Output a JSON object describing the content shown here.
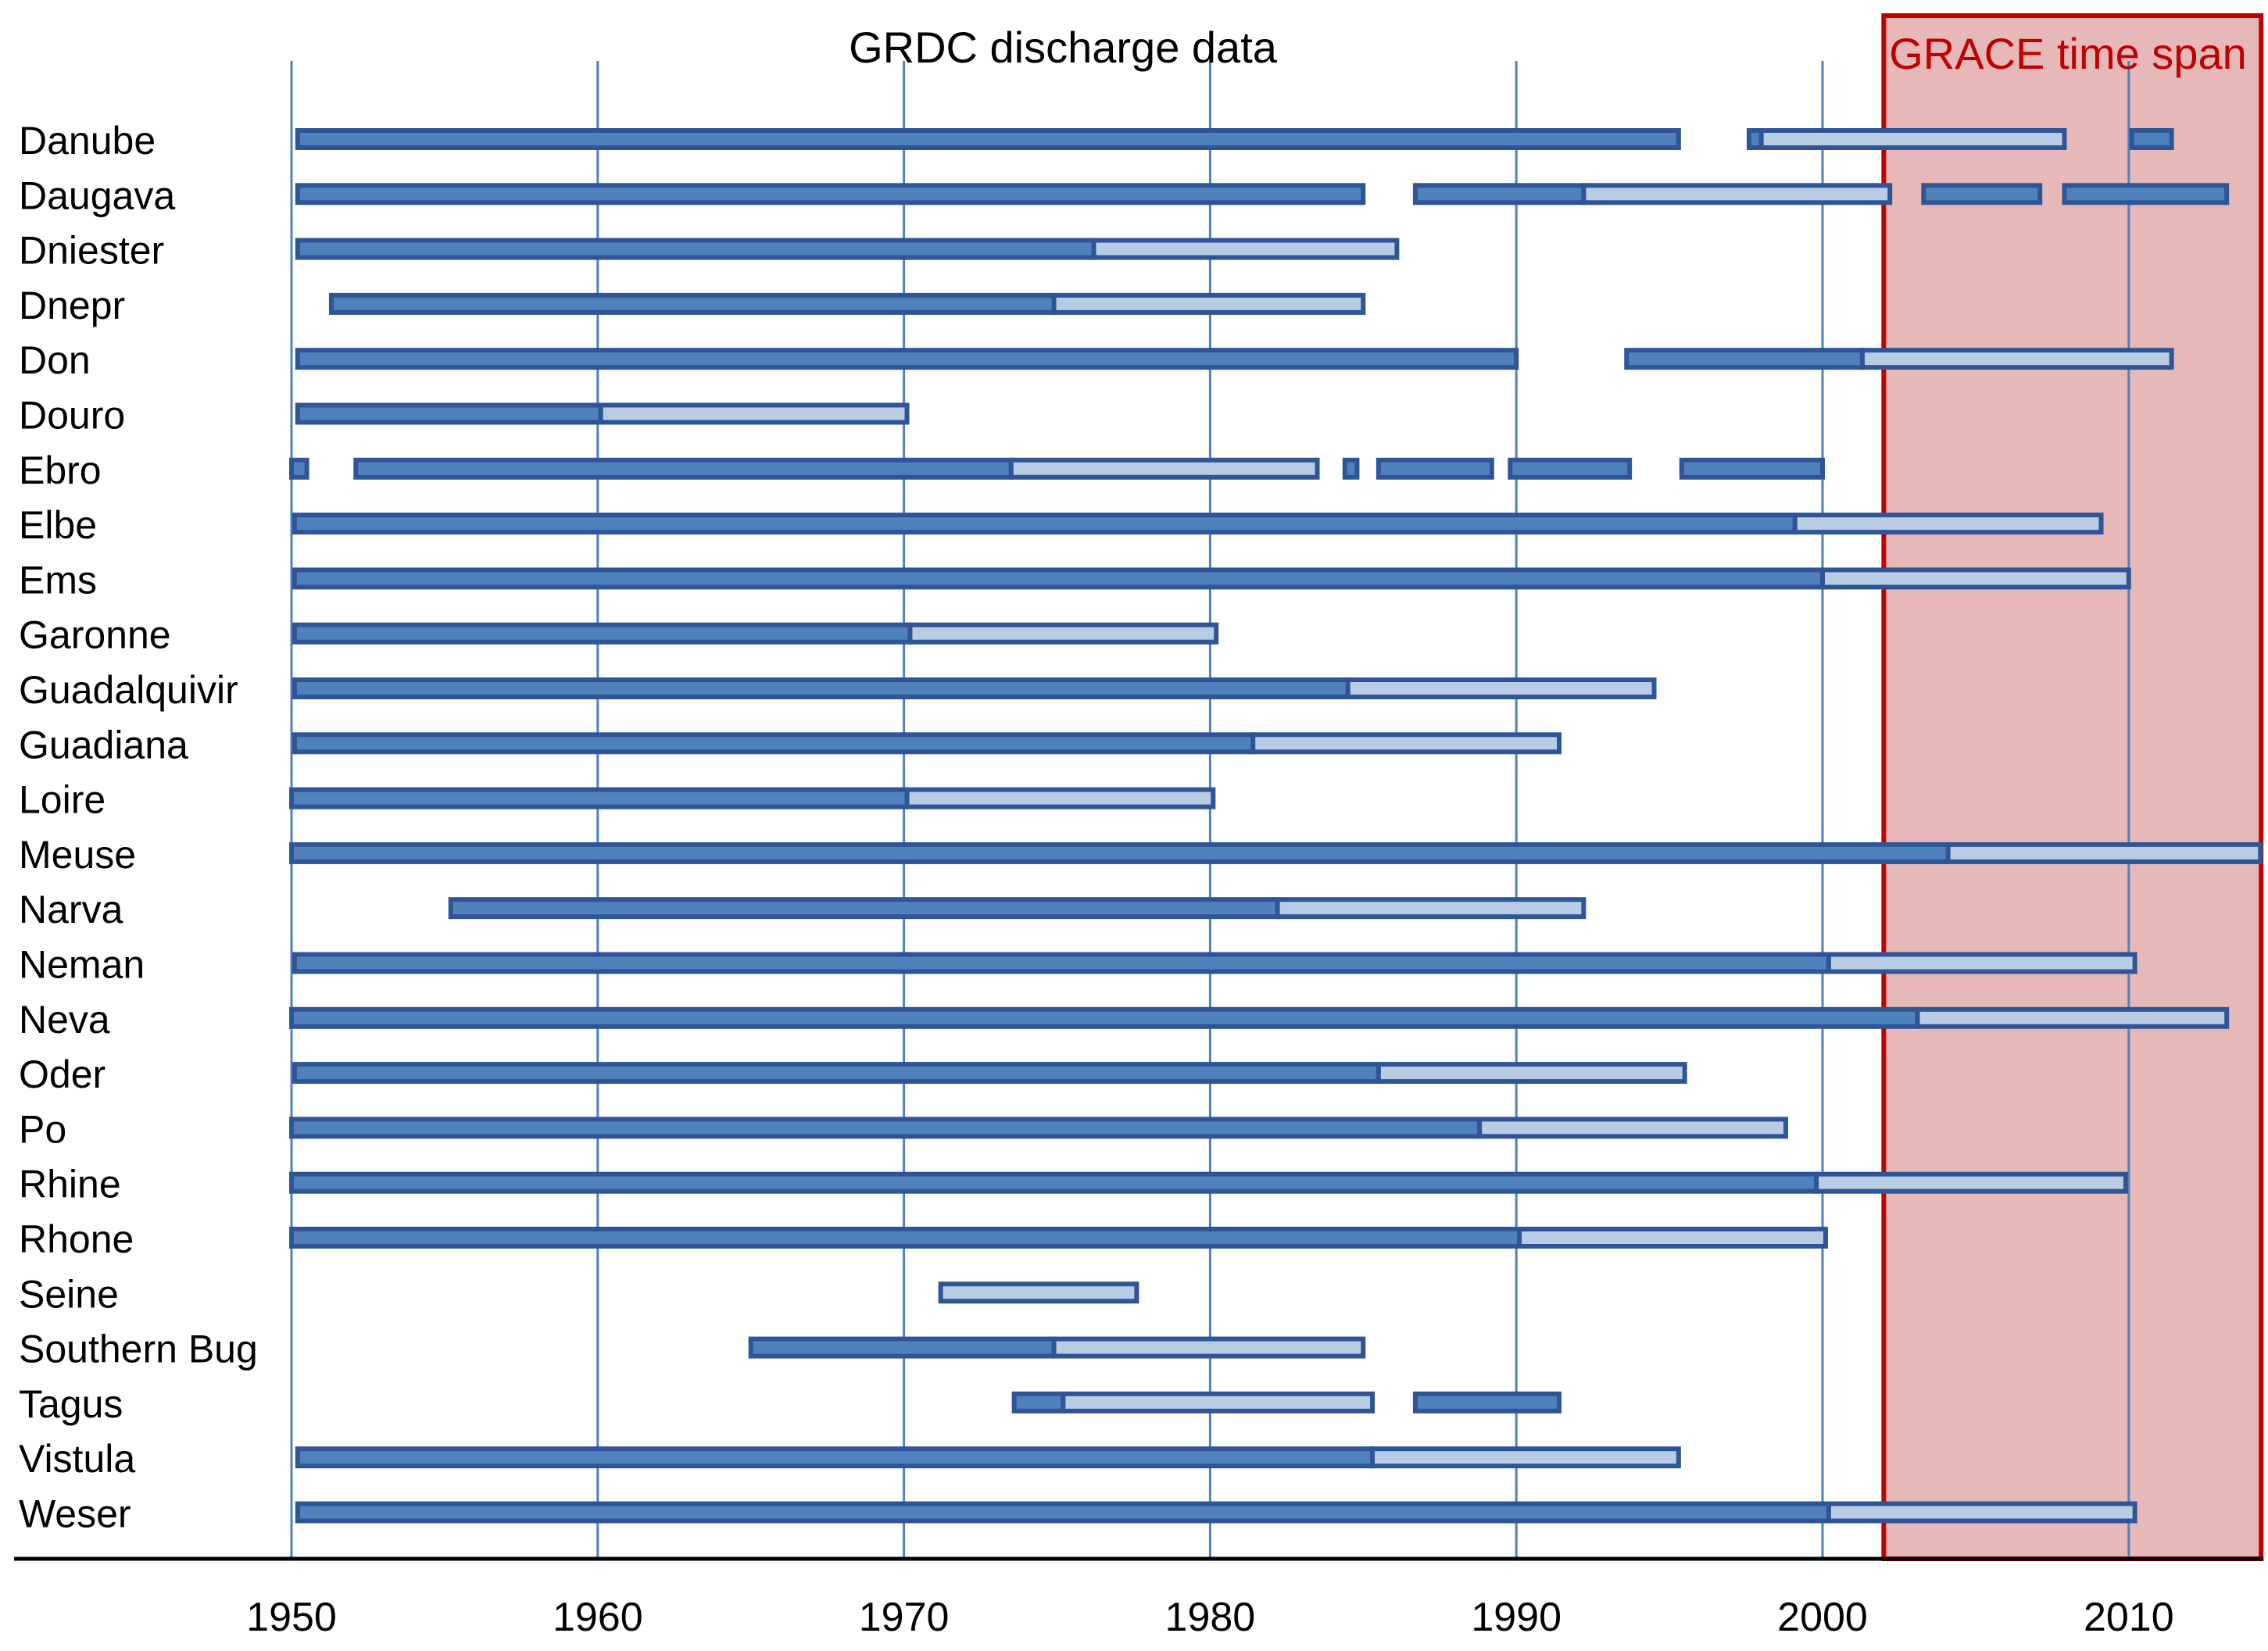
{
  "chart_data": {
    "type": "gantt",
    "title": "GRDC discharge data",
    "annotation": "GRACE time span",
    "grace_span": [
      2002,
      2014.4
    ],
    "xlim": [
      1941.0,
      2014.4
    ],
    "xticks": [
      1950,
      1960,
      1970,
      1980,
      1990,
      2000,
      2010
    ],
    "gridlines": [
      1950,
      1960,
      1970,
      1980,
      1990,
      2000,
      2010
    ],
    "legend": "none",
    "series_styles": {
      "primary": {
        "fill": "#4f81bd",
        "stroke": "#2f5597"
      },
      "secondary": {
        "fill": "#b8cce4",
        "stroke": "#2f5597"
      }
    },
    "colors": {
      "grace_fill": "#e6b9b8",
      "grace_stroke": "#c00000",
      "grace_text": "#c00000",
      "grid": "#4f81bd",
      "axis": "#000000"
    },
    "rivers": [
      {
        "name": "Danube",
        "segments": [
          {
            "start": 1950.2,
            "end": 1995.3,
            "kind": "primary"
          },
          {
            "start": 1997.6,
            "end": 1998.0,
            "kind": "primary"
          },
          {
            "start": 1998.0,
            "end": 2007.9,
            "kind": "secondary"
          },
          {
            "start": 2010.1,
            "end": 2011.4,
            "kind": "primary"
          }
        ]
      },
      {
        "name": "Daugava",
        "segments": [
          {
            "start": 1950.2,
            "end": 1985.0,
            "kind": "primary"
          },
          {
            "start": 1986.7,
            "end": 1992.2,
            "kind": "primary"
          },
          {
            "start": 1992.2,
            "end": 2002.2,
            "kind": "secondary"
          },
          {
            "start": 2003.3,
            "end": 2007.1,
            "kind": "primary"
          },
          {
            "start": 2007.9,
            "end": 2013.2,
            "kind": "primary"
          }
        ]
      },
      {
        "name": "Dniester",
        "segments": [
          {
            "start": 1950.2,
            "end": 1976.2,
            "kind": "primary"
          },
          {
            "start": 1976.2,
            "end": 1986.1,
            "kind": "secondary"
          }
        ]
      },
      {
        "name": "Dnepr",
        "segments": [
          {
            "start": 1951.3,
            "end": 1974.9,
            "kind": "primary"
          },
          {
            "start": 1974.9,
            "end": 1985.0,
            "kind": "secondary"
          }
        ]
      },
      {
        "name": "Don",
        "segments": [
          {
            "start": 1950.2,
            "end": 1990.0,
            "kind": "primary"
          },
          {
            "start": 1993.6,
            "end": 2001.3,
            "kind": "primary"
          },
          {
            "start": 2001.3,
            "end": 2011.4,
            "kind": "secondary"
          }
        ]
      },
      {
        "name": "Douro",
        "segments": [
          {
            "start": 1950.2,
            "end": 1960.1,
            "kind": "primary"
          },
          {
            "start": 1960.1,
            "end": 1970.1,
            "kind": "secondary"
          }
        ]
      },
      {
        "name": "Ebro",
        "segments": [
          {
            "start": 1950.0,
            "end": 1950.5,
            "kind": "primary"
          },
          {
            "start": 1952.1,
            "end": 1973.5,
            "kind": "primary"
          },
          {
            "start": 1973.5,
            "end": 1983.5,
            "kind": "secondary"
          },
          {
            "start": 1984.4,
            "end": 1984.8,
            "kind": "primary"
          },
          {
            "start": 1985.5,
            "end": 1989.2,
            "kind": "primary"
          },
          {
            "start": 1989.8,
            "end": 1993.7,
            "kind": "primary"
          },
          {
            "start": 1995.4,
            "end": 2000.0,
            "kind": "primary"
          }
        ]
      },
      {
        "name": "Elbe",
        "segments": [
          {
            "start": 1950.1,
            "end": 1999.1,
            "kind": "primary"
          },
          {
            "start": 1999.1,
            "end": 2009.1,
            "kind": "secondary"
          }
        ]
      },
      {
        "name": "Ems",
        "segments": [
          {
            "start": 1950.1,
            "end": 2000.0,
            "kind": "primary"
          },
          {
            "start": 2000.0,
            "end": 2010.0,
            "kind": "secondary"
          }
        ]
      },
      {
        "name": "Garonne",
        "segments": [
          {
            "start": 1950.1,
            "end": 1970.2,
            "kind": "primary"
          },
          {
            "start": 1970.2,
            "end": 1980.2,
            "kind": "secondary"
          }
        ]
      },
      {
        "name": "Guadalquivir",
        "segments": [
          {
            "start": 1950.1,
            "end": 1984.5,
            "kind": "primary"
          },
          {
            "start": 1984.5,
            "end": 1994.5,
            "kind": "secondary"
          }
        ]
      },
      {
        "name": "Guadiana",
        "segments": [
          {
            "start": 1950.1,
            "end": 1981.4,
            "kind": "primary"
          },
          {
            "start": 1981.4,
            "end": 1991.4,
            "kind": "secondary"
          }
        ]
      },
      {
        "name": "Loire",
        "segments": [
          {
            "start": 1950.0,
            "end": 1970.1,
            "kind": "primary"
          },
          {
            "start": 1970.1,
            "end": 1980.1,
            "kind": "secondary"
          }
        ]
      },
      {
        "name": "Meuse",
        "segments": [
          {
            "start": 1950.0,
            "end": 2004.1,
            "kind": "primary"
          },
          {
            "start": 2004.1,
            "end": 2014.3,
            "kind": "secondary"
          }
        ]
      },
      {
        "name": "Narva",
        "segments": [
          {
            "start": 1955.2,
            "end": 1982.2,
            "kind": "primary"
          },
          {
            "start": 1982.2,
            "end": 1992.2,
            "kind": "secondary"
          }
        ]
      },
      {
        "name": "Neman",
        "segments": [
          {
            "start": 1950.1,
            "end": 2000.2,
            "kind": "primary"
          },
          {
            "start": 2000.2,
            "end": 2010.2,
            "kind": "secondary"
          }
        ]
      },
      {
        "name": "Neva",
        "segments": [
          {
            "start": 1950.0,
            "end": 2003.1,
            "kind": "primary"
          },
          {
            "start": 2003.1,
            "end": 2013.2,
            "kind": "secondary"
          }
        ]
      },
      {
        "name": "Oder",
        "segments": [
          {
            "start": 1950.1,
            "end": 1985.5,
            "kind": "primary"
          },
          {
            "start": 1985.5,
            "end": 1995.5,
            "kind": "secondary"
          }
        ]
      },
      {
        "name": "Po",
        "segments": [
          {
            "start": 1950.0,
            "end": 1988.8,
            "kind": "primary"
          },
          {
            "start": 1988.8,
            "end": 1998.8,
            "kind": "secondary"
          }
        ]
      },
      {
        "name": "Rhine",
        "segments": [
          {
            "start": 1950.0,
            "end": 1999.8,
            "kind": "primary"
          },
          {
            "start": 1999.8,
            "end": 2009.9,
            "kind": "secondary"
          }
        ]
      },
      {
        "name": "Rhone",
        "segments": [
          {
            "start": 1950.0,
            "end": 1990.1,
            "kind": "primary"
          },
          {
            "start": 1990.1,
            "end": 2000.1,
            "kind": "secondary"
          }
        ]
      },
      {
        "name": "Seine",
        "segments": [
          {
            "start": 1971.2,
            "end": 1977.6,
            "kind": "secondary"
          }
        ]
      },
      {
        "name": "Southern Bug",
        "segments": [
          {
            "start": 1965.0,
            "end": 1974.9,
            "kind": "primary"
          },
          {
            "start": 1974.9,
            "end": 1985.0,
            "kind": "secondary"
          }
        ]
      },
      {
        "name": "Tagus",
        "segments": [
          {
            "start": 1973.6,
            "end": 1975.2,
            "kind": "primary"
          },
          {
            "start": 1975.2,
            "end": 1985.3,
            "kind": "secondary"
          },
          {
            "start": 1986.7,
            "end": 1991.4,
            "kind": "primary"
          }
        ]
      },
      {
        "name": "Vistula",
        "segments": [
          {
            "start": 1950.2,
            "end": 1985.3,
            "kind": "primary"
          },
          {
            "start": 1985.3,
            "end": 1995.3,
            "kind": "secondary"
          }
        ]
      },
      {
        "name": "Weser",
        "segments": [
          {
            "start": 1950.2,
            "end": 2000.2,
            "kind": "primary"
          },
          {
            "start": 2000.2,
            "end": 2010.2,
            "kind": "secondary"
          }
        ]
      }
    ]
  }
}
